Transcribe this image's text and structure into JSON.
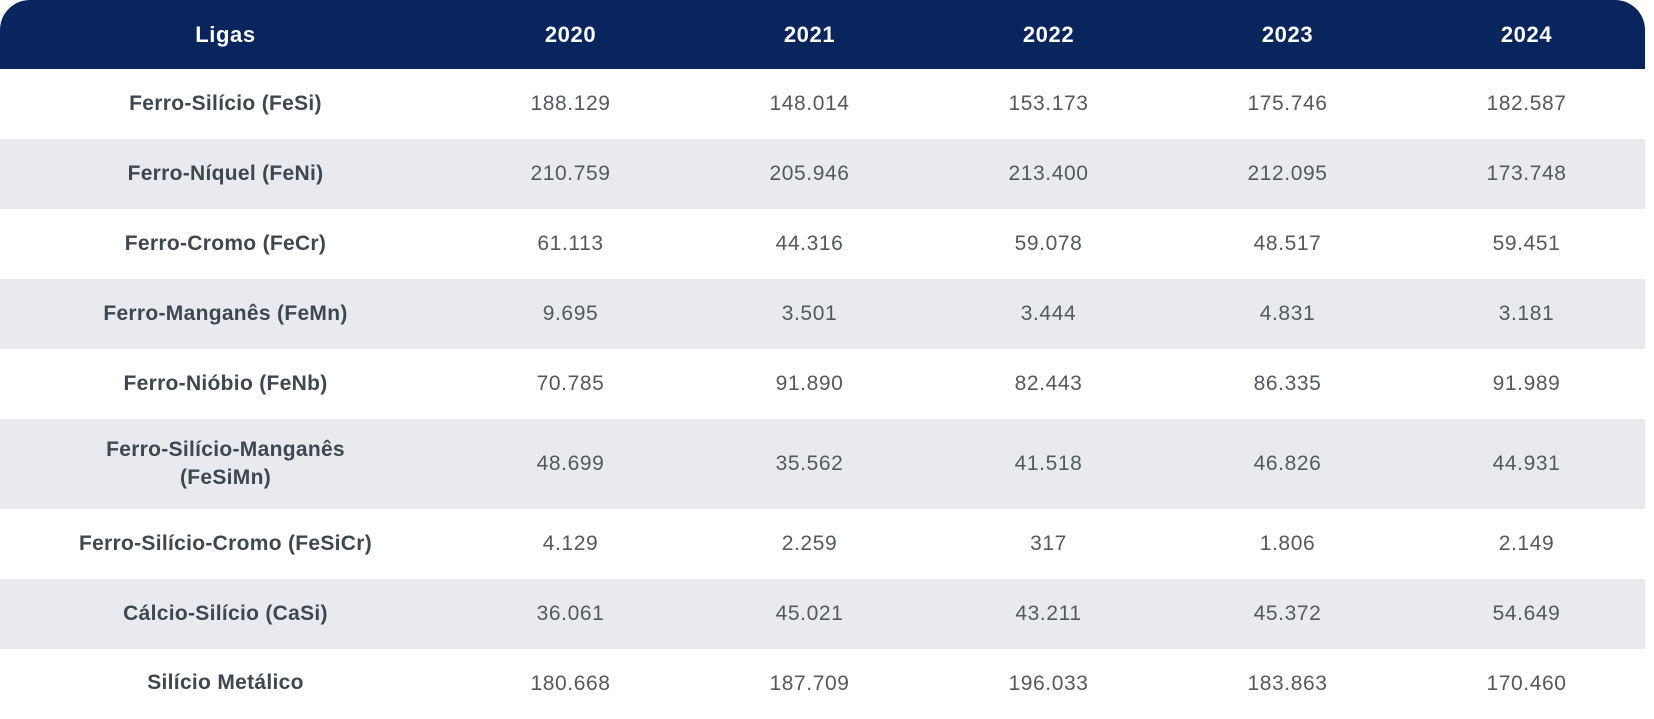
{
  "table": {
    "columns": [
      "Ligas",
      "2020",
      "2021",
      "2022",
      "2023",
      "2024"
    ],
    "rows": [
      {
        "label": "Ferro-Silício (FeSi)",
        "values": [
          "188.129",
          "148.014",
          "153.173",
          "175.746",
          "182.587"
        ]
      },
      {
        "label": "Ferro-Níquel (FeNi)",
        "values": [
          "210.759",
          "205.946",
          "213.400",
          "212.095",
          "173.748"
        ]
      },
      {
        "label": "Ferro-Cromo (FeCr)",
        "values": [
          "61.113",
          "44.316",
          "59.078",
          "48.517",
          "59.451"
        ]
      },
      {
        "label": "Ferro-Manganês (FeMn)",
        "values": [
          "9.695",
          "3.501",
          "3.444",
          "4.831",
          "3.181"
        ]
      },
      {
        "label": "Ferro-Nióbio (FeNb)",
        "values": [
          "70.785",
          "91.890",
          "82.443",
          "86.335",
          "91.989"
        ]
      },
      {
        "label": "Ferro-Silício-Manganês\n(FeSiMn)",
        "values": [
          "48.699",
          "35.562",
          "41.518",
          "46.826",
          "44.931"
        ]
      },
      {
        "label": "Ferro-Silício-Cromo (FeSiCr)",
        "values": [
          "4.129",
          "2.259",
          "317",
          "1.806",
          "2.149"
        ]
      },
      {
        "label": "Cálcio-Silício (CaSi)",
        "values": [
          "36.061",
          "45.021",
          "43.211",
          "45.372",
          "54.649"
        ]
      },
      {
        "label": "Silício Metálico",
        "values": [
          "180.668",
          "187.709",
          "196.033",
          "183.863",
          "170.460"
        ]
      }
    ]
  },
  "colors": {
    "header_bg": "#09255e",
    "header_text": "#ffffff",
    "row_bg": "#ffffff",
    "row_alt_bg": "#e8eaee",
    "label_text": "#3f4650",
    "value_text": "#54595f"
  },
  "chart_data": {
    "type": "table",
    "title": "",
    "columns": [
      "Ligas",
      "2020",
      "2021",
      "2022",
      "2023",
      "2024"
    ],
    "rows": [
      {
        "label": "Ferro-Silício (FeSi)",
        "values": [
          188129,
          148014,
          153173,
          175746,
          182587
        ]
      },
      {
        "label": "Ferro-Níquel (FeNi)",
        "values": [
          210759,
          205946,
          213400,
          212095,
          173748
        ]
      },
      {
        "label": "Ferro-Cromo (FeCr)",
        "values": [
          61113,
          44316,
          59078,
          48517,
          59451
        ]
      },
      {
        "label": "Ferro-Manganês (FeMn)",
        "values": [
          9695,
          3501,
          3444,
          4831,
          3181
        ]
      },
      {
        "label": "Ferro-Nióbio (FeNb)",
        "values": [
          70785,
          91890,
          82443,
          86335,
          91989
        ]
      },
      {
        "label": "Ferro-Silício-Manganês (FeSiMn)",
        "values": [
          48699,
          35562,
          41518,
          46826,
          44931
        ]
      },
      {
        "label": "Ferro-Silício-Cromo (FeSiCr)",
        "values": [
          4129,
          2259,
          317,
          1806,
          2149
        ]
      },
      {
        "label": "Cálcio-Silício (CaSi)",
        "values": [
          36061,
          45021,
          43211,
          45372,
          54649
        ]
      },
      {
        "label": "Silício Metálico",
        "values": [
          180668,
          187709,
          196033,
          183863,
          170460
        ]
      }
    ],
    "number_format": "pt-BR thousands separator (.)"
  }
}
